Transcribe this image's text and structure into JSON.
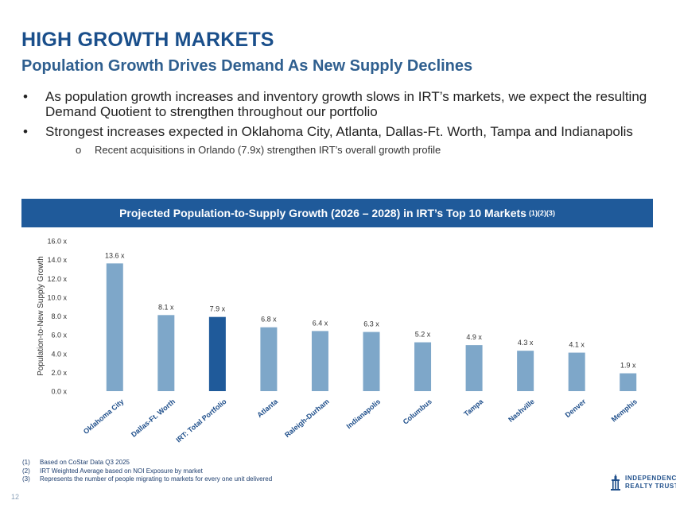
{
  "header": {
    "title": "HIGH GROWTH MARKETS",
    "subtitle": "Population Growth Drives Demand As New Supply Declines"
  },
  "bullets": [
    "As population growth increases and inventory growth slows in IRT’s markets, we expect the resulting Demand Quotient to strengthen throughout our portfolio",
    "Strongest increases expected in Oklahoma City, Atlanta,  Dallas-Ft. Worth, Tampa and Indianapolis"
  ],
  "sub_bullet": "Recent acquisitions in Orlando (7.9x) strengthen IRT’s overall growth profile",
  "banner": {
    "text": "Projected Population-to-Supply Growth (2026 – 2028) in IRT’s Top 10 Markets",
    "sup": "(1)(2)(3)"
  },
  "chart_data": {
    "type": "bar",
    "title": "Projected Population-to-Supply Growth (2026 – 2028) in IRT’s Top 10 Markets",
    "xlabel": "",
    "ylabel": "Population-to-New Supply Growth",
    "ylim": [
      0,
      16
    ],
    "yticks": [
      0,
      2,
      4,
      6,
      8,
      10,
      12,
      14,
      16
    ],
    "ytick_labels": [
      "0.0 x",
      "2.0 x",
      "4.0 x",
      "6.0 x",
      "8.0 x",
      "10.0 x",
      "12.0 x",
      "14.0 x",
      "16.0 x"
    ],
    "categories": [
      "Oklahoma City",
      "Dallas-Ft. Worth",
      "IRT: Total Portfolio",
      "Atlanta",
      "Raleigh-Durham",
      "Indianapolis",
      "Columbus",
      "Tampa",
      "Nashville",
      "Denver",
      "Memphis"
    ],
    "values": [
      13.6,
      8.1,
      7.9,
      6.8,
      6.4,
      6.3,
      5.2,
      4.9,
      4.3,
      4.1,
      1.9
    ],
    "data_labels": [
      "13.6 x",
      "8.1 x",
      "7.9 x",
      "6.8 x",
      "6.4 x",
      "6.3 x",
      "5.2 x",
      "4.9 x",
      "4.3 x",
      "4.1 x",
      "1.9 x"
    ],
    "highlight": "IRT: Total Portfolio",
    "colors": {
      "bar": "#7ea7c9",
      "highlight": "#1f5a9a"
    },
    "grid": false
  },
  "footnotes": [
    {
      "num": "(1)",
      "text": "Based on CoStar Data Q3 2025"
    },
    {
      "num": "(2)",
      "text": "IRT Weighted Average based on NOI Exposure by market"
    },
    {
      "num": "(3)",
      "text": "Represents the number of people migrating to markets for every one unit delivered"
    }
  ],
  "page_number": "12",
  "logo": {
    "line1": "INDEPENDENCE",
    "line2": "REALTY TRUST",
    "icon": "building-icon"
  },
  "colors": {
    "title": "#1a4f8b",
    "banner": "#1f5a9a"
  }
}
